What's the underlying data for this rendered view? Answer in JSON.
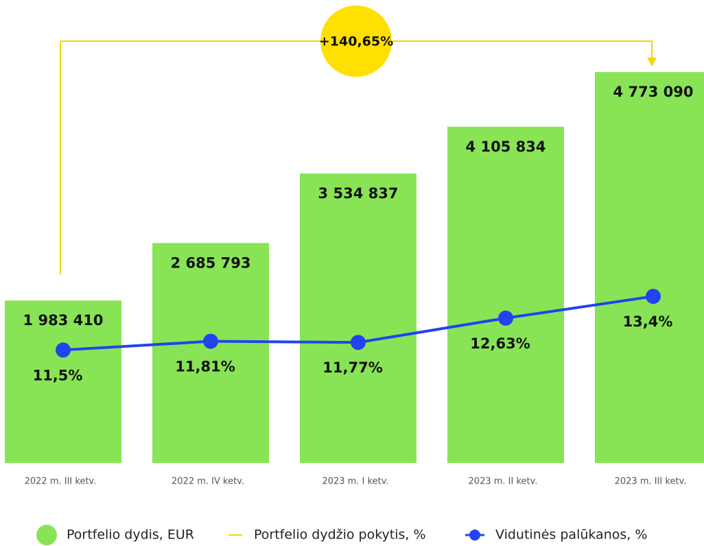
{
  "chart_data": {
    "type": "bar",
    "categories": [
      "2022 m. III ketv.",
      "2022 m. IV ketv.",
      "2023 m. I ketv.",
      "2023 m. II ketv.",
      "2023 m. III ketv."
    ],
    "series": [
      {
        "name": "Portfelio dydis, EUR",
        "type": "bar",
        "color": "#88e455",
        "values": [
          1983410,
          2685793,
          3534837,
          4105834,
          4773090
        ],
        "value_labels": [
          "1 983 410",
          "2 685 793",
          "3 534 837",
          "4 105 834",
          "4 773 090"
        ]
      },
      {
        "name": "Vidutinės palūkanos, %",
        "type": "line",
        "axis": "y2",
        "color": "#2342f0",
        "values": [
          11.5,
          11.81,
          11.77,
          12.63,
          13.4
        ],
        "value_labels": [
          "11,5%",
          "11,81%",
          "11,77%",
          "12,63%",
          "13,4%"
        ]
      }
    ],
    "annotation": {
      "text": "+140,65%",
      "legend": "Portfelio dydžio pokytis, %",
      "color": "#ffe000",
      "line_color": "#f2d600"
    },
    "ylim": [
      0,
      5000000
    ],
    "y2lim": [
      7.5,
      22
    ],
    "grid": false
  }
}
